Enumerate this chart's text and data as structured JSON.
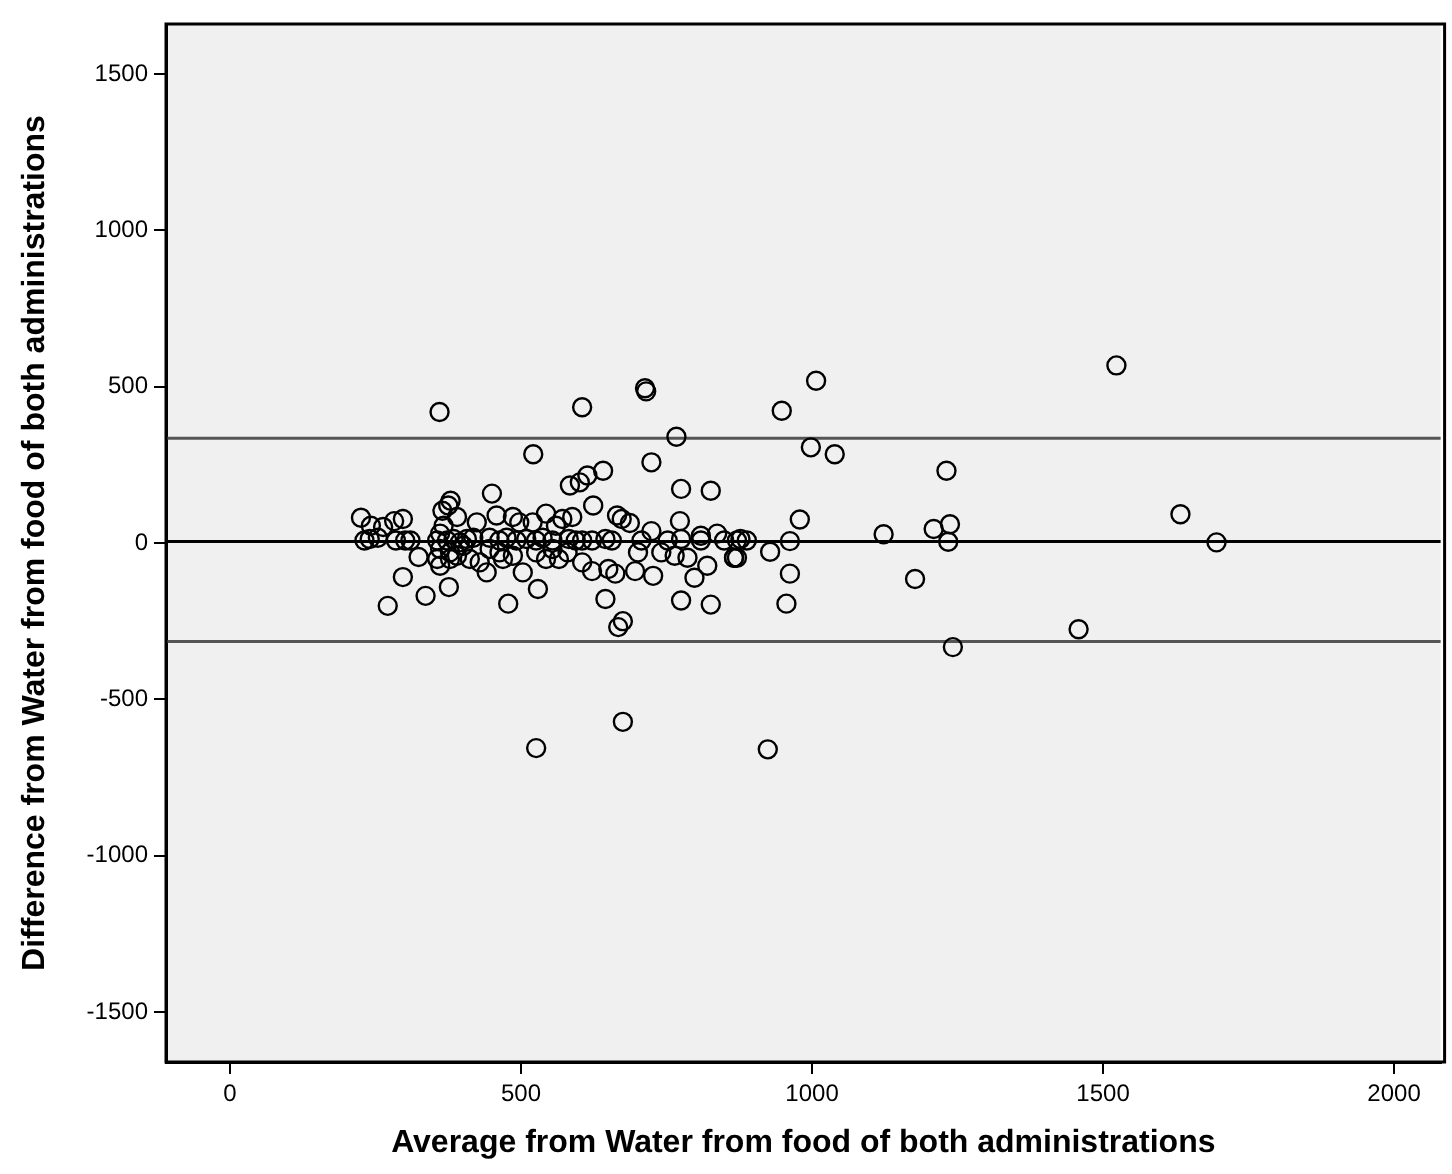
{
  "chart_data": {
    "type": "scatter",
    "xlabel": "Average from Water from food of both administrations",
    "ylabel": "Difference from Water from food of both administrations",
    "xlim": [
      -110,
      2080
    ],
    "xticks": [
      0,
      500,
      1000,
      1500,
      2000
    ],
    "ylim": [
      -1660,
      1660
    ],
    "yticks": [
      -1500,
      -1000,
      -500,
      0,
      500,
      1000,
      1500
    ],
    "grid": false,
    "legend": false,
    "marker": "circle",
    "ref_lines": [
      {
        "axis": "y",
        "value": 335,
        "color": "#555555"
      },
      {
        "axis": "y",
        "value": 5,
        "color": "#000000"
      },
      {
        "axis": "y",
        "value": -315,
        "color": "#555555"
      }
    ],
    "series": [
      {
        "color": "#000000",
        "x": [
          360,
          605,
          713,
          715,
          767,
          521,
          724,
          450,
          584,
          601,
          614,
          641,
          775,
          826,
          379,
          375,
          365,
          624,
          773,
          665,
          687,
          324,
          297,
          271,
          336,
          376,
          478,
          529,
          645,
          667,
          675,
          775,
          826,
          675,
          526,
          727,
          798,
          866,
          1007,
          948,
          998,
          1039,
          1523,
          1231,
          979,
          1123,
          1209,
          1237,
          1234,
          962,
          928,
          871,
          962,
          1177,
          956,
          1242,
          1458,
          924,
          1633,
          1695,
          225,
          242,
          263,
          282,
          297,
          231,
          240,
          254,
          285,
          301,
          310,
          361,
          367,
          390,
          424,
          458,
          486,
          497,
          520,
          543,
          560,
          571,
          588,
          673,
          724,
          809,
          837,
          877,
          356,
          373,
          384,
          395,
          407,
          418,
          446,
          463,
          475,
          492,
          509,
          526,
          537,
          554,
          582,
          594,
          605,
          622,
          645,
          656,
          707,
          752,
          775,
          809,
          849,
          871,
          888,
          361,
          378,
          390,
          401,
          412,
          429,
          441,
          446,
          463,
          469,
          486,
          503,
          526,
          543,
          554,
          565,
          580,
          605,
          622,
          650,
          662,
          696,
          701,
          741,
          764,
          786,
          820,
          866,
          361,
          378,
          356
        ],
        "values": [
          419,
          434,
          495,
          485,
          340,
          284,
          258,
          158,
          184,
          194,
          216,
          231,
          173,
          167,
          135,
          120,
          103,
          120,
          70,
          88,
          64,
          -45,
          -109,
          -201,
          -169,
          -141,
          -194,
          -147,
          -179,
          -269,
          -250,
          -184,
          -197,
          -572,
          -656,
          -105,
          -111,
          -47,
          519,
          423,
          306,
          284,
          568,
          231,
          75,
          28,
          45,
          60,
          4,
          6,
          -28,
          -47,
          -98,
          -115,
          -194,
          -333,
          -276,
          -660,
          92,
          2,
          81,
          55,
          51,
          70,
          77,
          8,
          13,
          17,
          8,
          8,
          8,
          30,
          55,
          83,
          66,
          88,
          83,
          66,
          66,
          94,
          55,
          77,
          83,
          77,
          38,
          23,
          30,
          13,
          8,
          8,
          13,
          2,
          13,
          17,
          17,
          8,
          17,
          8,
          13,
          8,
          17,
          8,
          13,
          8,
          8,
          8,
          13,
          8,
          8,
          8,
          13,
          8,
          8,
          8,
          8,
          -19,
          -30,
          -41,
          -9,
          -51,
          -62,
          -94,
          -19,
          -30,
          -51,
          -41,
          -94,
          -30,
          -51,
          -19,
          -51,
          -30,
          -62,
          -90,
          -83,
          -98,
          -90,
          -30,
          -30,
          -41,
          -47,
          -73,
          -47,
          -73,
          -51,
          -51
        ]
      }
    ]
  }
}
